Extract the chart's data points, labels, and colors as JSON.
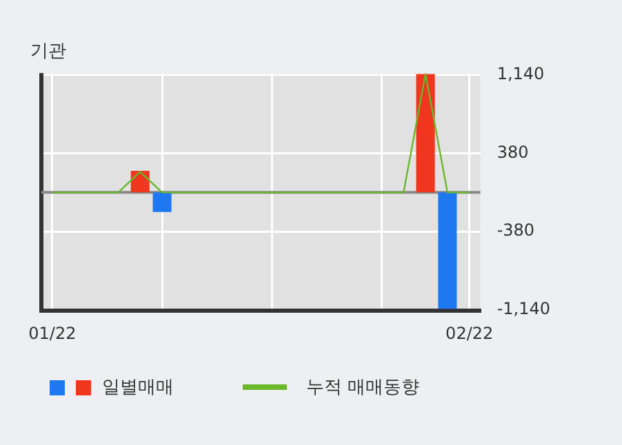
{
  "chart_data": {
    "type": "bar",
    "title": "기관",
    "categories": [
      "01/22",
      null,
      null,
      null,
      null,
      null,
      null,
      null,
      null,
      null,
      null,
      null,
      null,
      null,
      null,
      null,
      null,
      null,
      null,
      "02/22"
    ],
    "series": [
      {
        "name": "일별매매",
        "colors": [
          "#f0361e",
          "#f0361e",
          "#f0361e",
          "#f0361e",
          "#f0361e",
          "#1e78f0",
          "#f0361e",
          "#f0361e",
          "#f0361e",
          "#f0361e",
          "#f0361e",
          "#f0361e",
          "#f0361e",
          "#f0361e",
          "#f0361e",
          "#f0361e",
          "#f0361e",
          "#f0361e",
          "#1e78f0",
          "#f0361e"
        ],
        "values": [
          0,
          0,
          0,
          0,
          210,
          -190,
          0,
          0,
          0,
          0,
          0,
          0,
          0,
          0,
          0,
          0,
          0,
          1150,
          -1130,
          0
        ]
      },
      {
        "name": "누적 매매동향",
        "type": "line",
        "color": "#6ab82a",
        "values": [
          0,
          0,
          0,
          0,
          200,
          0,
          0,
          0,
          0,
          0,
          0,
          0,
          0,
          0,
          0,
          0,
          0,
          1150,
          0,
          0
        ]
      }
    ],
    "ylim": [
      -1150,
      1160
    ],
    "yticks": [
      {
        "value": -1140,
        "label": "-1,140"
      },
      {
        "value": -380,
        "label": "-380"
      },
      {
        "value": 380,
        "label": "380"
      },
      {
        "value": 1140,
        "label": "1,140"
      }
    ],
    "grid": true,
    "legend": "bottom",
    "marker": "none"
  }
}
